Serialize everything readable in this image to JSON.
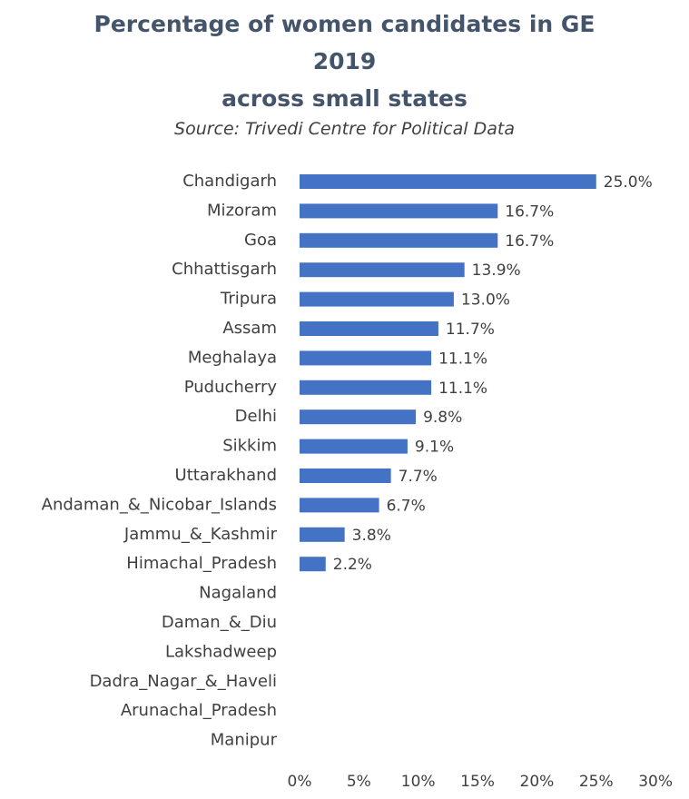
{
  "chart_data": {
    "type": "bar",
    "orientation": "horizontal",
    "title_lines": [
      "Percentage of women candidates in GE",
      "2019",
      "across small states"
    ],
    "subtitle": "Source: Trivedi Centre for Political Data",
    "categories": [
      "Chandigarh",
      "Mizoram",
      "Goa",
      "Chhattisgarh",
      "Tripura",
      "Assam",
      "Meghalaya",
      "Puducherry",
      "Delhi",
      "Sikkim",
      "Uttarakhand",
      "Andaman_&_Nicobar_Islands",
      "Jammu_&_Kashmir",
      "Himachal_Pradesh",
      "Nagaland",
      "Daman_&_Diu",
      "Lakshadweep",
      "Dadra_Nagar_&_Haveli",
      "Arunachal_Pradesh",
      "Manipur"
    ],
    "values": [
      25.0,
      16.7,
      16.7,
      13.9,
      13.0,
      11.7,
      11.1,
      11.1,
      9.8,
      9.1,
      7.7,
      6.7,
      3.8,
      2.2,
      0,
      0,
      0,
      0,
      0,
      0
    ],
    "value_labels": [
      "25.0%",
      "16.7%",
      "16.7%",
      "13.9%",
      "13.0%",
      "11.7%",
      "11.1%",
      "11.1%",
      "9.8%",
      "9.1%",
      "7.7%",
      "6.7%",
      "3.8%",
      "2.2%",
      "",
      "",
      "",
      "",
      "",
      ""
    ],
    "xlim": [
      0,
      30
    ],
    "x_ticks": [
      0,
      5,
      10,
      15,
      20,
      25,
      30
    ],
    "x_tick_labels": [
      "0%",
      "5%",
      "10%",
      "15%",
      "20%",
      "25%",
      "30%"
    ],
    "bar_color": "#4472c4",
    "grid": false,
    "legend": "none"
  }
}
